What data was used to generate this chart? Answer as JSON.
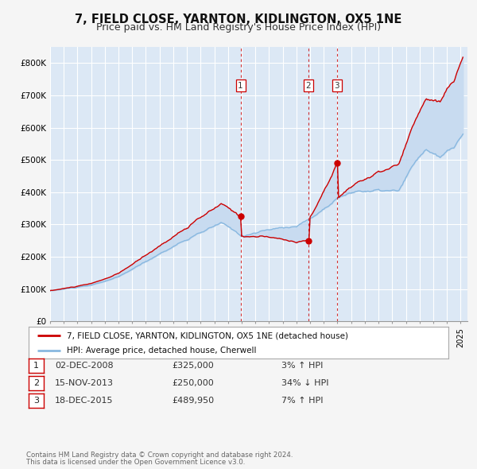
{
  "title": "7, FIELD CLOSE, YARNTON, KIDLINGTON, OX5 1NE",
  "subtitle": "Price paid vs. HM Land Registry's House Price Index (HPI)",
  "ylim": [
    0,
    850000
  ],
  "xlim_start": 1995.0,
  "xlim_end": 2025.5,
  "background_color": "#f5f5f5",
  "plot_bg_color": "#dce8f5",
  "grid_color": "#ffffff",
  "sale_color": "#cc0000",
  "hpi_color": "#88b8e0",
  "fill_color": "#c8dbf0",
  "legend_label_sale": "7, FIELD CLOSE, YARNTON, KIDLINGTON, OX5 1NE (detached house)",
  "legend_label_hpi": "HPI: Average price, detached house, Cherwell",
  "transactions": [
    {
      "id": 1,
      "date": 2008.92,
      "price": 325000,
      "label": "02-DEC-2008",
      "price_str": "£325,000",
      "pct": "3%",
      "dir": "↑"
    },
    {
      "id": 2,
      "date": 2013.88,
      "price": 250000,
      "label": "15-NOV-2013",
      "price_str": "£250,000",
      "pct": "34%",
      "dir": "↓"
    },
    {
      "id": 3,
      "date": 2015.96,
      "price": 489950,
      "label": "18-DEC-2015",
      "price_str": "£489,950",
      "pct": "7%",
      "dir": "↑"
    }
  ],
  "footer_line1": "Contains HM Land Registry data © Crown copyright and database right 2024.",
  "footer_line2": "This data is licensed under the Open Government Licence v3.0.",
  "title_fontsize": 10.5,
  "subtitle_fontsize": 9,
  "ytick_labels": [
    "£0",
    "£100K",
    "£200K",
    "£300K",
    "£400K",
    "£500K",
    "£600K",
    "£700K",
    "£800K"
  ],
  "ytick_values": [
    0,
    100000,
    200000,
    300000,
    400000,
    500000,
    600000,
    700000,
    800000
  ]
}
